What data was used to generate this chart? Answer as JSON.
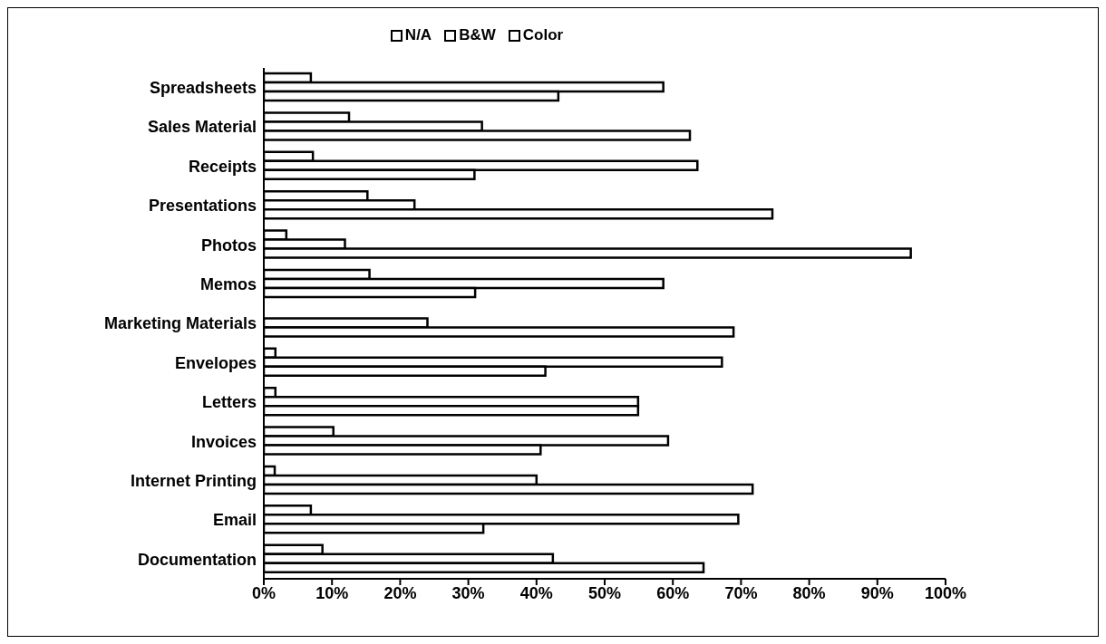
{
  "chart_data": {
    "type": "bar",
    "orientation": "horizontal",
    "categories": [
      "Spreadsheets",
      "Sales Material",
      "Receipts",
      "Presentations",
      "Photos",
      "Memos",
      "Marketing Materials",
      "Envelopes",
      "Letters",
      "Invoices",
      "Internet Printing",
      "Email",
      "Documentation"
    ],
    "series": [
      {
        "name": "N/A",
        "color": "#ffffff",
        "values": [
          6.9,
          12.5,
          7.2,
          15.2,
          3.3,
          15.5,
          null,
          1.7,
          1.7,
          10.2,
          1.6,
          6.9,
          8.6
        ]
      },
      {
        "name": "B&W",
        "color": "#ffffff",
        "values": [
          58.6,
          32.0,
          63.6,
          22.1,
          11.9,
          58.6,
          24.0,
          67.2,
          54.9,
          59.3,
          40.0,
          69.6,
          42.4
        ]
      },
      {
        "name": "Color",
        "color": "#ffffff",
        "values": [
          43.2,
          62.5,
          30.9,
          74.6,
          94.9,
          31.0,
          68.9,
          41.3,
          54.9,
          40.6,
          71.7,
          32.2,
          64.5
        ]
      }
    ],
    "xlim": [
      0,
      100
    ],
    "xticks": [
      {
        "value": 0,
        "label": "0%"
      },
      {
        "value": 10,
        "label": "10%"
      },
      {
        "value": 20,
        "label": "20%"
      },
      {
        "value": 30,
        "label": "30%"
      },
      {
        "value": 40,
        "label": "40%"
      },
      {
        "value": 50,
        "label": "50%"
      },
      {
        "value": 60,
        "label": "60%"
      },
      {
        "value": 70,
        "label": "70%"
      },
      {
        "value": 80,
        "label": "80%"
      },
      {
        "value": 90,
        "label": "90%"
      },
      {
        "value": 100,
        "label": "100%"
      }
    ],
    "grid": false,
    "legend": "top"
  }
}
